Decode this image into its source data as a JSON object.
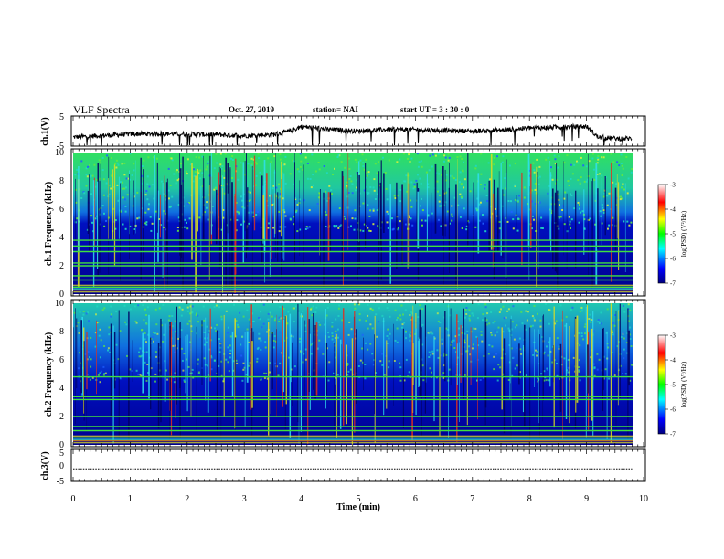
{
  "header": {
    "title": "VLF Spectra",
    "date": "Oct. 27, 2019",
    "station": "station= NAI",
    "start": "start  UT =   3  : 30 : 0"
  },
  "colorbar": {
    "label": "log(PSD) (V²/Hz)",
    "ticks": [
      "-3",
      "-4",
      "-5",
      "-6",
      "-7"
    ],
    "range": [
      -7,
      -3
    ]
  },
  "colors": {
    "background_dark": "#00008b",
    "band_cyan": "#20d0e0",
    "band_green": "#40e040",
    "trace": "#000000"
  },
  "chart_data": [
    {
      "type": "line",
      "panel": "ch1-voltage",
      "ylabel": "ch.1(V)",
      "ylim": [
        -5,
        5
      ],
      "yticks": [
        "5",
        "-5"
      ],
      "xlim": [
        0,
        10
      ],
      "x": [
        0,
        0.5,
        1,
        1.5,
        2,
        2.5,
        3,
        3.5,
        3.8,
        4,
        4.5,
        5,
        5.5,
        6,
        6.5,
        7,
        7.5,
        8,
        8.5,
        9,
        9.2,
        9.5,
        9.8
      ],
      "values": [
        -2,
        -1.5,
        -1,
        -0.8,
        -1,
        -1.2,
        -1.5,
        -1.2,
        0,
        1.5,
        0.5,
        0,
        0.5,
        0.5,
        0.2,
        0,
        0.3,
        1,
        1.3,
        1.5,
        -2,
        -2.5,
        -2.5
      ]
    },
    {
      "type": "heatmap",
      "panel": "ch1-spectrogram",
      "ylabel": "ch.1 Frequency (kHz)",
      "ylim": [
        0,
        10
      ],
      "yticks": [
        "0",
        "2",
        "4",
        "6",
        "8",
        "10"
      ],
      "xlim": [
        0,
        10
      ],
      "zlim": [
        -7,
        -3
      ],
      "bands_khz": [
        0.3,
        0.5,
        1.0,
        1.3,
        2.0,
        2.2,
        3.0,
        3.4,
        3.8
      ]
    },
    {
      "type": "heatmap",
      "panel": "ch2-spectrogram",
      "ylabel": "ch.2 Frequency (kHz)",
      "ylim": [
        0,
        10
      ],
      "yticks": [
        "0",
        "2",
        "4",
        "6",
        "8",
        "10"
      ],
      "xlim": [
        0,
        10
      ],
      "zlim": [
        -7,
        -3
      ],
      "bands_khz": [
        0.3,
        0.5,
        1.0,
        1.3,
        2.0,
        3.2,
        3.4,
        4.8
      ]
    },
    {
      "type": "line",
      "panel": "ch3-voltage",
      "ylabel": "ch.3(V)",
      "ylim": [
        -5,
        5
      ],
      "yticks": [
        "5",
        "0",
        "-5"
      ],
      "xlim": [
        0,
        10
      ],
      "xlabel": "Time  (min)",
      "xticks": [
        "0",
        "1",
        "2",
        "3",
        "4",
        "5",
        "6",
        "7",
        "8",
        "9",
        "10"
      ],
      "x": [
        0,
        9.8
      ],
      "values": [
        -1.2,
        -1.2
      ]
    }
  ]
}
